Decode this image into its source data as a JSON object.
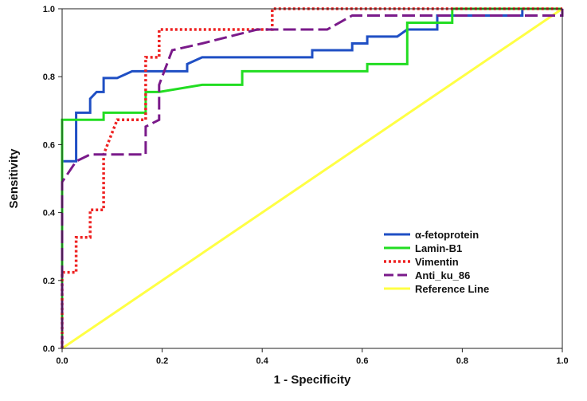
{
  "chart_data": {
    "type": "line",
    "title": "",
    "xlabel": "1 - Specificity",
    "ylabel": "Sensitivity",
    "xlim": [
      0,
      1
    ],
    "ylim": [
      0,
      1
    ],
    "x_ticks": [
      "0.0",
      "0.2",
      "0.4",
      "0.6",
      "0.8",
      "1.0"
    ],
    "y_ticks": [
      "0.0",
      "0.2",
      "0.4",
      "0.6",
      "0.8",
      "1.0"
    ],
    "grid": false,
    "legend_position": "bottom-right",
    "series": [
      {
        "name": "α-fetoprotein",
        "color": "#1f4fc4",
        "style": "solid",
        "x": [
          0,
          0,
          0.028,
          0.028,
          0.056,
          0.056,
          0.069,
          0.083,
          0.083,
          0.11,
          0.14,
          0.25,
          0.25,
          0.28,
          0.5,
          0.5,
          0.58,
          0.58,
          0.61,
          0.61,
          0.64,
          0.67,
          0.69,
          0.69,
          0.75,
          0.75,
          0.92,
          0.92,
          1.0
        ],
        "y": [
          0,
          0.551,
          0.551,
          0.694,
          0.694,
          0.735,
          0.755,
          0.755,
          0.796,
          0.796,
          0.816,
          0.816,
          0.837,
          0.857,
          0.857,
          0.878,
          0.878,
          0.898,
          0.898,
          0.918,
          0.918,
          0.918,
          0.939,
          0.939,
          0.939,
          0.98,
          0.98,
          1.0,
          1.0
        ]
      },
      {
        "name": "Lamin-B1",
        "color": "#22dd22",
        "style": "solid",
        "x": [
          0,
          0,
          0.083,
          0.083,
          0.167,
          0.167,
          0.194,
          0.28,
          0.36,
          0.36,
          0.61,
          0.61,
          0.69,
          0.69,
          0.78,
          0.78,
          1.0
        ],
        "y": [
          0,
          0.673,
          0.673,
          0.694,
          0.694,
          0.755,
          0.755,
          0.776,
          0.776,
          0.816,
          0.816,
          0.837,
          0.837,
          0.959,
          0.959,
          1.0,
          1.0
        ]
      },
      {
        "name": "Vimentin",
        "color": "#ee2222",
        "style": "dotted",
        "x": [
          0,
          0,
          0.028,
          0.028,
          0.056,
          0.056,
          0.083,
          0.083,
          0.11,
          0.167,
          0.167,
          0.194,
          0.194,
          0.42,
          0.42,
          1.0
        ],
        "y": [
          0,
          0.224,
          0.224,
          0.327,
          0.327,
          0.408,
          0.408,
          0.571,
          0.673,
          0.673,
          0.857,
          0.857,
          0.939,
          0.939,
          1.0,
          1.0
        ]
      },
      {
        "name": "Anti_ku_86",
        "color": "#7a1a8a",
        "style": "dashed",
        "x": [
          0,
          0,
          0.028,
          0.056,
          0.167,
          0.167,
          0.194,
          0.194,
          0.22,
          0.28,
          0.39,
          0.42,
          0.53,
          0.58,
          1.0,
          1.0
        ],
        "y": [
          0,
          0.49,
          0.551,
          0.571,
          0.571,
          0.653,
          0.673,
          0.776,
          0.878,
          0.898,
          0.939,
          0.939,
          0.939,
          0.98,
          0.98,
          1.0
        ]
      },
      {
        "name": "Reference Line",
        "color": "#ffff44",
        "style": "solid",
        "x": [
          0,
          1
        ],
        "y": [
          0,
          1
        ]
      }
    ]
  }
}
